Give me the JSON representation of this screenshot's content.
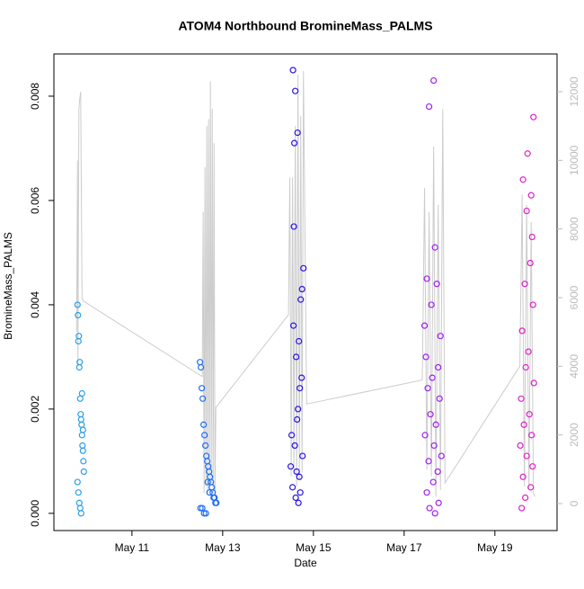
{
  "chart_data": {
    "type": "scatter",
    "title": "ATOM4 Northbound BromineMass_PALMS",
    "x_label": "Date",
    "y_label": "BromineMass_PALMS",
    "xlim": [
      9.28,
      20.37
    ],
    "xticks": [
      {
        "value": 11,
        "label": "May 11"
      },
      {
        "value": 13,
        "label": "May 13"
      },
      {
        "value": 15,
        "label": "May 15"
      },
      {
        "value": 17,
        "label": "May 17"
      },
      {
        "value": 19,
        "label": "May 19"
      }
    ],
    "ylim": [
      -0.00033,
      0.00881
    ],
    "yticks": [
      {
        "value": 0,
        "label": "0.000"
      },
      0.002,
      0.004,
      0.006,
      0.008
    ],
    "y2lim": [
      -786,
      13100
    ],
    "y2ticks": [
      0,
      2000,
      4000,
      6000,
      8000,
      10000,
      12000
    ],
    "grid": false,
    "series": [
      {
        "color": "#2b9ee8",
        "x": [
          9.8,
          9.81,
          9.82,
          9.83,
          9.84,
          9.85,
          9.86,
          9.87,
          9.88,
          9.89,
          9.9,
          9.91,
          9.92,
          9.93,
          9.94,
          9.8,
          9.82,
          9.84,
          9.86,
          9.88,
          9.9,
          9.92
        ],
        "values": [
          0.004,
          0.0038,
          0.0033,
          0.0034,
          0.0028,
          0.0029,
          0.0022,
          0.0019,
          0.0018,
          0.0017,
          0.0015,
          0.0013,
          0.0012,
          0.001,
          0.0008,
          0.0006,
          0.0004,
          0.0002,
          0.0001,
          0.0,
          0.0023,
          0.0016
        ]
      },
      {
        "color": "#1f6ef5",
        "x": [
          12.5,
          12.52,
          12.54,
          12.56,
          12.58,
          12.6,
          12.62,
          12.64,
          12.66,
          12.68,
          12.7,
          12.72,
          12.74,
          12.76,
          12.78,
          12.8,
          12.82,
          12.84,
          12.86,
          12.51,
          12.55,
          12.59,
          12.63,
          12.67,
          12.71
        ],
        "values": [
          0.0029,
          0.0028,
          0.0024,
          0.0022,
          0.0017,
          0.0015,
          0.0013,
          0.0011,
          0.001,
          0.0009,
          0.0008,
          0.0007,
          0.0006,
          0.0005,
          0.0004,
          0.0003,
          0.0003,
          0.0002,
          0.0002,
          0.0001,
          0.0001,
          0.0,
          0.0,
          0.0006,
          0.0004
        ]
      },
      {
        "color": "#2a14e8",
        "x": [
          14.55,
          14.6,
          14.65,
          14.58,
          14.57,
          14.78,
          14.75,
          14.72,
          14.56,
          14.68,
          14.62,
          14.74,
          14.7,
          14.66,
          14.64,
          14.52,
          14.59,
          14.76,
          14.5,
          14.63,
          14.69,
          14.54,
          14.71,
          14.61,
          14.67
        ],
        "values": [
          0.0085,
          0.0081,
          0.0073,
          0.0071,
          0.0055,
          0.0047,
          0.0043,
          0.0041,
          0.0036,
          0.0033,
          0.003,
          0.0026,
          0.0024,
          0.002,
          0.0018,
          0.0015,
          0.0013,
          0.0011,
          0.0009,
          0.0008,
          0.0007,
          0.0005,
          0.0004,
          0.0003,
          0.0002
        ]
      },
      {
        "color": "#a020f0",
        "x": [
          17.65,
          17.55,
          17.68,
          17.5,
          17.72,
          17.6,
          17.45,
          17.8,
          17.48,
          17.75,
          17.62,
          17.52,
          17.78,
          17.58,
          17.7,
          17.46,
          17.66,
          17.82,
          17.54,
          17.74,
          17.64,
          17.5,
          17.76,
          17.56,
          17.68
        ],
        "values": [
          0.0083,
          0.0078,
          0.0051,
          0.0045,
          0.0044,
          0.004,
          0.0036,
          0.0034,
          0.003,
          0.0028,
          0.0026,
          0.0024,
          0.0022,
          0.0019,
          0.0017,
          0.0015,
          0.0013,
          0.0011,
          0.001,
          0.0008,
          0.0006,
          0.0004,
          0.0002,
          0.0001,
          0.0
        ]
      },
      {
        "color": "#e020c8",
        "x": [
          19.85,
          19.72,
          19.62,
          19.8,
          19.7,
          19.82,
          19.78,
          19.66,
          19.84,
          19.6,
          19.74,
          19.68,
          19.86,
          19.58,
          19.76,
          19.64,
          19.81,
          19.56,
          19.7,
          19.83,
          19.62,
          19.79,
          19.67,
          19.59
        ],
        "values": [
          0.0076,
          0.0069,
          0.0064,
          0.0061,
          0.0058,
          0.0053,
          0.0048,
          0.0044,
          0.004,
          0.0035,
          0.0031,
          0.0028,
          0.0025,
          0.0022,
          0.0019,
          0.0017,
          0.0015,
          0.0013,
          0.0011,
          0.0009,
          0.0007,
          0.0005,
          0.0003,
          0.0001
        ]
      },
      {
        "color": "#cccccc",
        "axis": "y2",
        "kind": "line",
        "x": [
          9.78,
          9.8,
          9.81,
          9.83,
          9.85,
          9.87,
          9.9,
          9.93,
          12.55,
          12.57,
          12.59,
          12.61,
          12.63,
          12.65,
          12.67,
          12.69,
          12.71,
          12.73,
          12.75,
          12.77,
          12.79,
          12.81,
          12.83,
          12.85,
          14.45,
          14.48,
          14.51,
          14.54,
          14.57,
          14.6,
          14.63,
          14.66,
          14.69,
          14.72,
          14.75,
          14.78,
          14.85,
          17.4,
          17.45,
          17.5,
          17.55,
          17.6,
          17.65,
          17.7,
          17.75,
          17.8,
          17.85,
          17.9,
          19.55,
          19.6,
          19.65,
          19.7,
          19.75,
          19.8,
          19.85,
          19.88
        ],
        "values": [
          5000,
          10000,
          4000,
          11500,
          11800,
          12000,
          6000,
          5900,
          3700,
          8500,
          300,
          9800,
          500,
          11000,
          300,
          11200,
          400,
          12300,
          600,
          11500,
          300,
          10500,
          300,
          2800,
          5500,
          9500,
          800,
          9500,
          1000,
          11000,
          500,
          12500,
          700,
          11300,
          900,
          12600,
          2900,
          3600,
          9200,
          1000,
          8500,
          800,
          10400,
          200,
          8700,
          400,
          11500,
          600,
          4000,
          9000,
          500,
          8700,
          400,
          8200,
          300,
          200
        ]
      }
    ]
  }
}
